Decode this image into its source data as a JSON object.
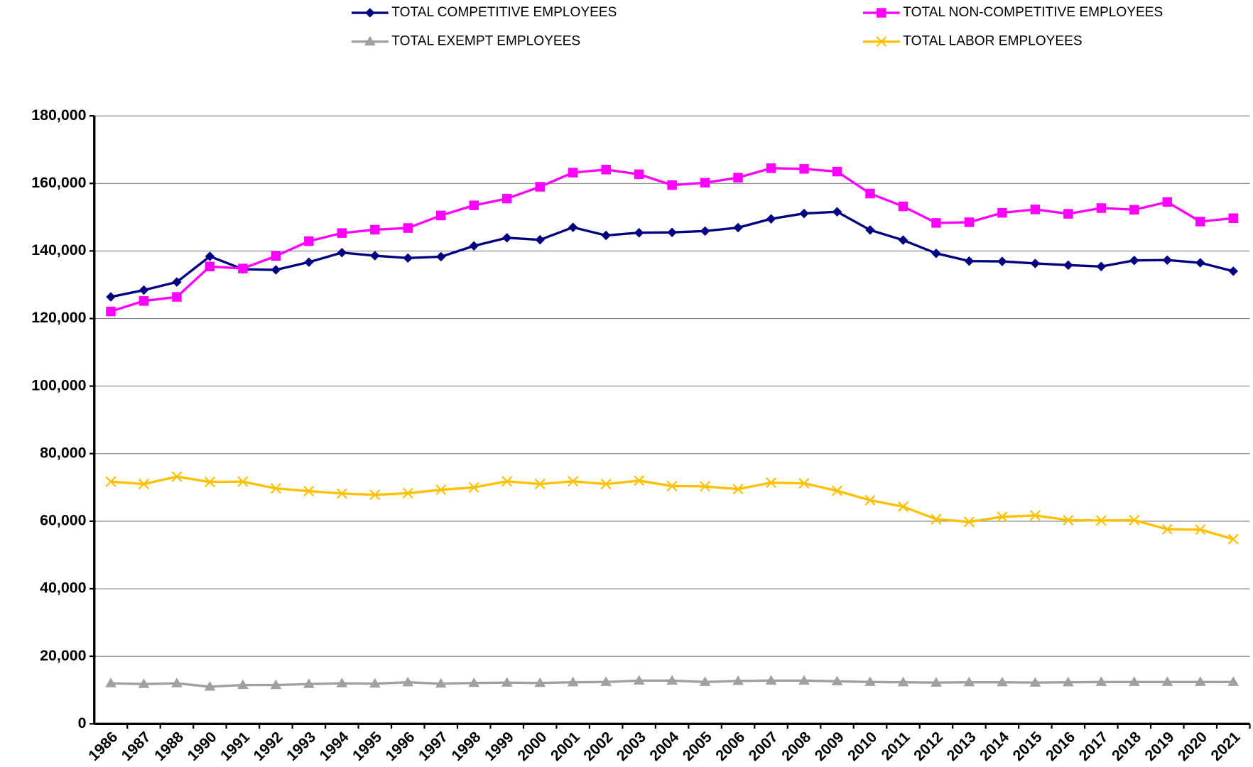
{
  "chart_data": {
    "type": "line",
    "categories": [
      "1986",
      "1987",
      "1988",
      "1990",
      "1991",
      "1992",
      "1993",
      "1994",
      "1995",
      "1996",
      "1997",
      "1998",
      "1999",
      "2000",
      "2001",
      "2002",
      "2003",
      "2004",
      "2005",
      "2006",
      "2007",
      "2008",
      "2009",
      "2010",
      "2011",
      "2012",
      "2013",
      "2014",
      "2015",
      "2016",
      "2017",
      "2018",
      "2019",
      "2020",
      "2021"
    ],
    "series": [
      {
        "name": "TOTAL COMPETITIVE EMPLOYEES",
        "color": "#000080",
        "marker": "diamond",
        "values": [
          126400,
          128400,
          130800,
          138400,
          134600,
          134400,
          136700,
          139500,
          138600,
          137900,
          138300,
          141500,
          143900,
          143300,
          147000,
          144600,
          145400,
          145500,
          145900,
          146900,
          149500,
          151100,
          151600,
          146200,
          143200,
          139300,
          137000,
          136900,
          136300,
          135800,
          135400,
          137200,
          137300,
          136500,
          134000
        ]
      },
      {
        "name": "TOTAL NON-COMPETITIVE EMPLOYEES",
        "color": "#ff00ff",
        "marker": "square",
        "values": [
          122100,
          125200,
          126400,
          135400,
          134800,
          138500,
          142900,
          145300,
          146300,
          146800,
          150500,
          153500,
          155500,
          159000,
          163200,
          164100,
          162700,
          159500,
          160200,
          161700,
          164500,
          164300,
          163500,
          157000,
          153200,
          148300,
          148500,
          151300,
          152300,
          151000,
          152700,
          152200,
          154500,
          148700,
          149700
        ]
      },
      {
        "name": "TOTAL EXEMPT EMPLOYEES",
        "color": "#a0a0a0",
        "marker": "triangle",
        "values": [
          12000,
          11800,
          12000,
          11000,
          11500,
          11500,
          11800,
          12000,
          11900,
          12300,
          11900,
          12100,
          12200,
          12100,
          12300,
          12400,
          12800,
          12800,
          12400,
          12700,
          12800,
          12800,
          12600,
          12400,
          12300,
          12200,
          12300,
          12300,
          12200,
          12300,
          12400,
          12400,
          12400,
          12400,
          12400
        ]
      },
      {
        "name": "TOTAL LABOR EMPLOYEES",
        "color": "#ffc000",
        "marker": "x",
        "values": [
          71700,
          71000,
          73200,
          71600,
          71700,
          69700,
          68900,
          68200,
          67800,
          68300,
          69300,
          70000,
          71800,
          71000,
          71800,
          71000,
          72000,
          70400,
          70300,
          69500,
          71400,
          71200,
          69000,
          66200,
          64300,
          60600,
          59800,
          61300,
          61700,
          60300,
          60200,
          60300,
          57600,
          57500,
          54700
        ]
      }
    ],
    "ylim": [
      0,
      180000
    ],
    "yticks": [
      0,
      {
        "value": 20000,
        "label": "20,000"
      },
      {
        "value": 40000,
        "label": "40,000"
      },
      {
        "value": 60000,
        "label": "60,000"
      },
      {
        "value": 80000,
        "label": "80,000"
      },
      {
        "value": 100000,
        "label": "100,000"
      },
      {
        "value": 120000,
        "label": "120,000"
      },
      {
        "value": 140000,
        "label": "140,000"
      },
      {
        "value": 160000,
        "label": "160,000"
      },
      {
        "value": 180000,
        "label": "180,000"
      }
    ],
    "grid": true,
    "legend": "top"
  }
}
